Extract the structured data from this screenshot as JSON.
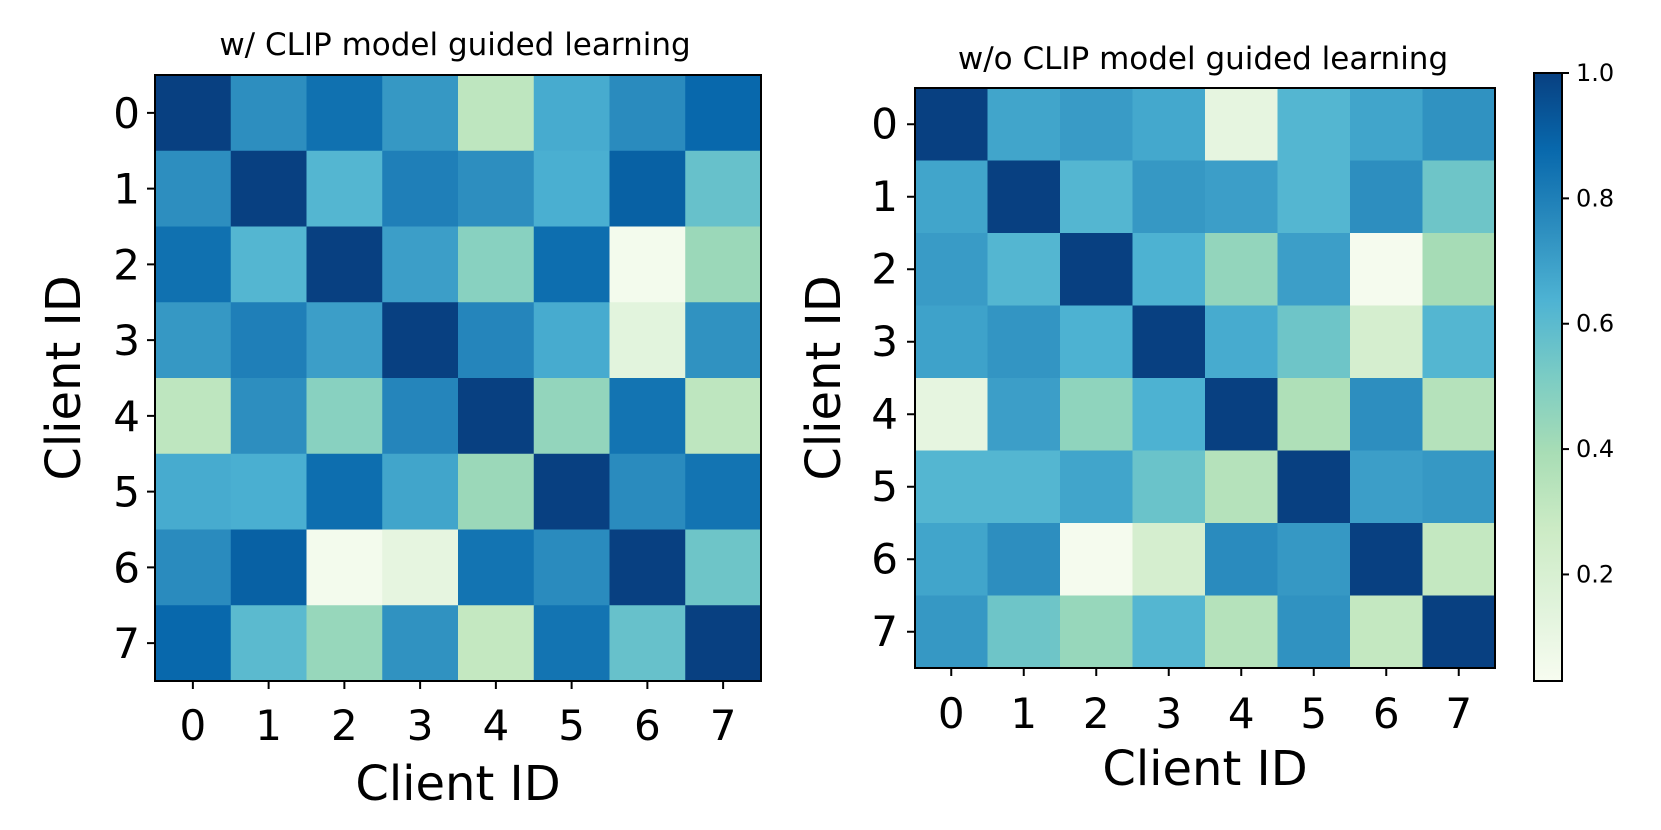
{
  "figure": {
    "colormap": "GnBu",
    "colorbar": {
      "range": [
        0.03,
        1.0
      ],
      "ticks": [
        "0.2",
        "0.4",
        "0.6",
        "0.8",
        "1.0"
      ],
      "tick_values": [
        0.2,
        0.4,
        0.6,
        0.8,
        1.0
      ]
    }
  },
  "chart_data": [
    {
      "type": "heatmap",
      "title": "w/ CLIP model guided learning",
      "xlabel": "Client ID",
      "ylabel": "Client ID",
      "x_ticks": [
        "0",
        "1",
        "2",
        "3",
        "4",
        "5",
        "6",
        "7"
      ],
      "y_ticks": [
        "0",
        "1",
        "2",
        "3",
        "4",
        "5",
        "6",
        "7"
      ],
      "values": [
        [
          1.0,
          0.75,
          0.85,
          0.72,
          0.32,
          0.66,
          0.76,
          0.88
        ],
        [
          0.75,
          1.0,
          0.62,
          0.8,
          0.75,
          0.65,
          0.9,
          0.57
        ],
        [
          0.85,
          0.62,
          1.0,
          0.7,
          0.48,
          0.86,
          0.05,
          0.43
        ],
        [
          0.72,
          0.8,
          0.7,
          1.0,
          0.78,
          0.66,
          0.14,
          0.74
        ],
        [
          0.32,
          0.75,
          0.48,
          0.78,
          1.0,
          0.45,
          0.84,
          0.32
        ],
        [
          0.66,
          0.65,
          0.86,
          0.68,
          0.43,
          1.0,
          0.76,
          0.84
        ],
        [
          0.76,
          0.9,
          0.05,
          0.12,
          0.84,
          0.76,
          1.0,
          0.55
        ],
        [
          0.88,
          0.6,
          0.44,
          0.74,
          0.3,
          0.84,
          0.57,
          1.0
        ]
      ]
    },
    {
      "type": "heatmap",
      "title": "w/o CLIP model guided learning",
      "xlabel": "Client ID",
      "ylabel": "Client ID",
      "x_ticks": [
        "0",
        "1",
        "2",
        "3",
        "4",
        "5",
        "6",
        "7"
      ],
      "y_ticks": [
        "0",
        "1",
        "2",
        "3",
        "4",
        "5",
        "6",
        "7"
      ],
      "values": [
        [
          1.0,
          0.68,
          0.71,
          0.67,
          0.12,
          0.62,
          0.68,
          0.74
        ],
        [
          0.68,
          1.0,
          0.62,
          0.72,
          0.7,
          0.62,
          0.75,
          0.55
        ],
        [
          0.71,
          0.62,
          1.0,
          0.64,
          0.45,
          0.7,
          0.04,
          0.4
        ],
        [
          0.69,
          0.73,
          0.64,
          1.0,
          0.66,
          0.55,
          0.22,
          0.62
        ],
        [
          0.12,
          0.7,
          0.46,
          0.64,
          1.0,
          0.37,
          0.75,
          0.35
        ],
        [
          0.62,
          0.62,
          0.68,
          0.56,
          0.35,
          1.0,
          0.7,
          0.72
        ],
        [
          0.68,
          0.75,
          0.04,
          0.22,
          0.76,
          0.72,
          1.0,
          0.3
        ],
        [
          0.72,
          0.55,
          0.44,
          0.62,
          0.35,
          0.74,
          0.3,
          1.0
        ]
      ]
    }
  ]
}
